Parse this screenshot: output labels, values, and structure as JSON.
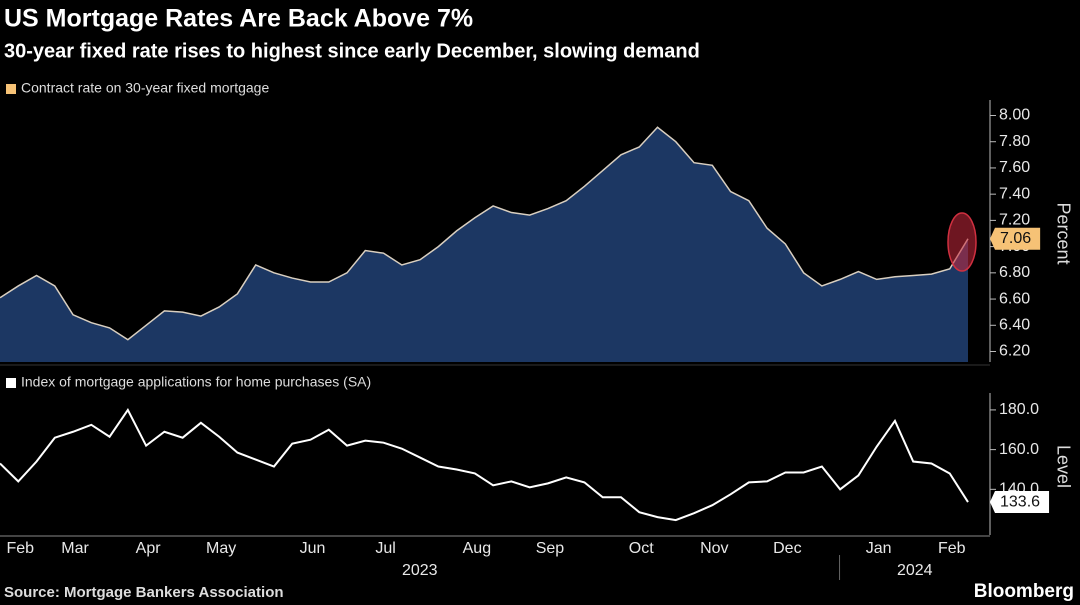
{
  "title": "US Mortgage Rates Are Back Above 7%",
  "subtitle": "30-year fixed rate rises to highest since early December, slowing demand",
  "source": "Source: Mortgage Bankers Association",
  "brand": "Bloomberg",
  "chart_data": [
    {
      "type": "area",
      "axis_label": "Percent",
      "area_color": "#1c3763",
      "line_color": "#d9cfc0",
      "series": [
        {
          "name": "Contract rate on 30-year fixed mortgage",
          "color": "#f6c276",
          "values": [
            6.61,
            6.7,
            6.78,
            6.7,
            6.48,
            6.42,
            6.38,
            6.29,
            6.4,
            6.51,
            6.5,
            6.47,
            6.54,
            6.64,
            6.86,
            6.8,
            6.76,
            6.73,
            6.73,
            6.8,
            6.97,
            6.95,
            6.86,
            6.9,
            7.0,
            7.12,
            7.22,
            7.31,
            7.26,
            7.24,
            7.29,
            7.35,
            7.46,
            7.58,
            7.7,
            7.76,
            7.91,
            7.8,
            7.64,
            7.62,
            7.42,
            7.35,
            7.14,
            7.02,
            6.8,
            6.7,
            6.75,
            6.81,
            6.75,
            6.77,
            6.78,
            6.79,
            6.83,
            7.06
          ]
        }
      ],
      "ylim": [
        6.12,
        8.08
      ],
      "yticks": [
        {
          "value": 6.2,
          "label": "6.20"
        },
        {
          "value": 6.4,
          "label": "6.40"
        },
        {
          "value": 6.6,
          "label": "6.60"
        },
        {
          "value": 6.8,
          "label": "6.80"
        },
        {
          "value": 7.0,
          "label": "7.00"
        },
        {
          "value": 7.2,
          "label": "7.20"
        },
        {
          "value": 7.4,
          "label": "7.40"
        },
        {
          "value": 7.6,
          "label": "7.60"
        },
        {
          "value": 7.8,
          "label": "7.80"
        },
        {
          "value": 8.0,
          "label": "8.00"
        }
      ]
    },
    {
      "type": "line",
      "axis_label": "Level",
      "categories": [
        null,
        "Feb",
        null,
        null,
        "Mar",
        null,
        null,
        null,
        "Apr",
        null,
        null,
        null,
        "May",
        null,
        null,
        null,
        null,
        "Jun",
        null,
        null,
        null,
        "Jul",
        null,
        null,
        null,
        null,
        "Aug",
        null,
        null,
        null,
        "Sep",
        null,
        null,
        null,
        null,
        "Oct",
        null,
        null,
        null,
        "Nov",
        null,
        null,
        null,
        "Dec",
        null,
        null,
        null,
        null,
        "Jan",
        null,
        null,
        null,
        "Feb",
        null
      ],
      "years": [
        "2023",
        "2024"
      ],
      "series": [
        {
          "name": "Index of mortgage applications for home purchases (SA)",
          "color": "#ffffff",
          "values": [
            153,
            144,
            154,
            166,
            169,
            172.5,
            166.5,
            180,
            162,
            169,
            166,
            173.5,
            166.5,
            158.5,
            155,
            151.5,
            163,
            165,
            170,
            162,
            164.5,
            163.5,
            160.5,
            156,
            151.5,
            150,
            148,
            142,
            144,
            141,
            143,
            146,
            143.5,
            136,
            136,
            128.5,
            126,
            124.5,
            128,
            132,
            137.5,
            143.5,
            144,
            148.5,
            148.5,
            151.5,
            140,
            147,
            161.5,
            174.5,
            154,
            153,
            148,
            133.6
          ]
        }
      ],
      "ylim": [
        117,
        186
      ],
      "yticks": [
        {
          "value": 140,
          "label": "140.0"
        },
        {
          "value": 160,
          "label": "160.0"
        },
        {
          "value": 180,
          "label": "180.0"
        }
      ]
    }
  ]
}
